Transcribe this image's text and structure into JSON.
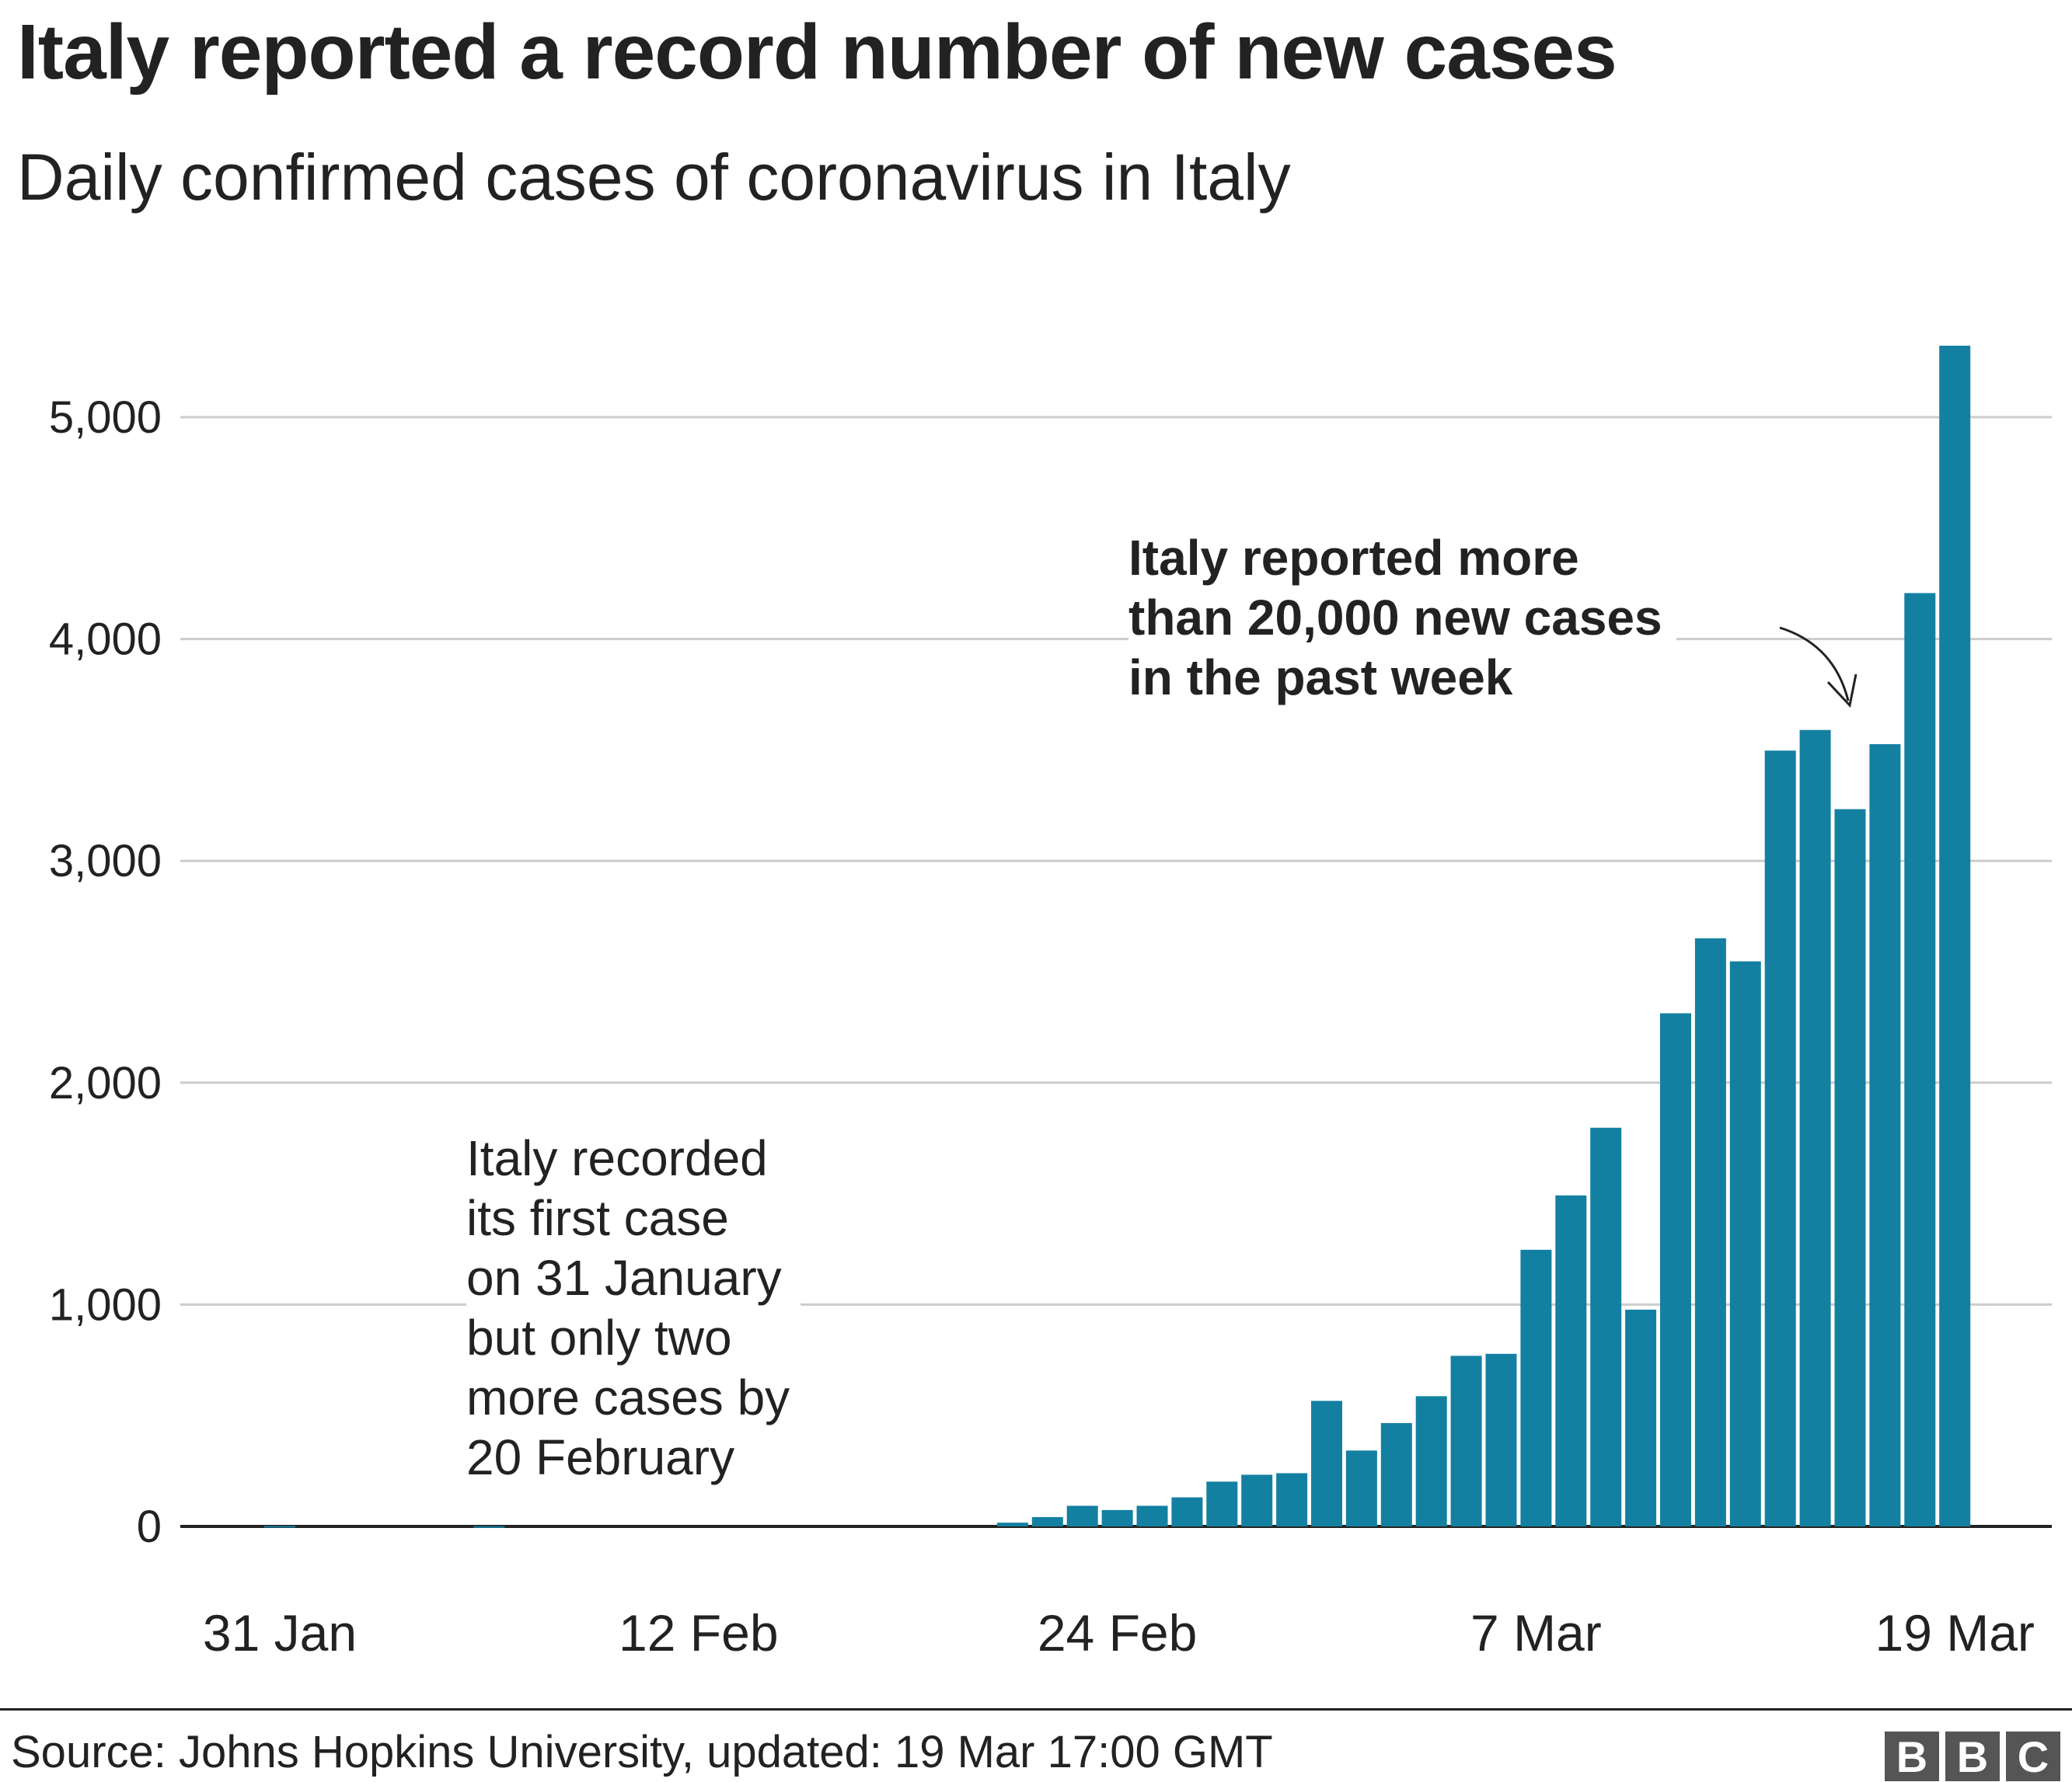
{
  "title": "Italy reported a record number of new cases",
  "subtitle": "Daily confirmed cases of coronavirus in Italy",
  "source": "Source: Johns Hopkins University, updated:  19 Mar 17:00 GMT",
  "logo": [
    "B",
    "B",
    "C"
  ],
  "colors": {
    "bar": "#1380a1",
    "grid": "#cccccc",
    "axis": "#222222"
  },
  "annotations": {
    "first_case": "Italy recorded\nits first case\non 31 January\nbut only two\nmore cases by\n20 February",
    "past_week": "Italy reported more\nthan 20,000 new cases\nin the past week"
  },
  "chart_data": {
    "type": "bar",
    "title": "Italy reported a record number of new cases",
    "subtitle": "Daily confirmed cases of coronavirus in Italy",
    "ylim": [
      0,
      5400
    ],
    "yticks": [
      0,
      1000,
      2000,
      3000,
      4000,
      5000
    ],
    "ytick_labels": [
      "0",
      "1,000",
      "2,000",
      "3,000",
      "4,000",
      "5,000"
    ],
    "xtick_labels": [
      "31 Jan",
      "12 Feb",
      "24 Feb",
      "7 Mar",
      "19 Mar"
    ],
    "xtick_dates": [
      "31 Jan",
      "12 Feb",
      "24 Feb",
      "7 Mar",
      "19 Mar"
    ],
    "grid": true,
    "categories": [
      "31 Jan",
      "1 Feb",
      "2 Feb",
      "3 Feb",
      "4 Feb",
      "5 Feb",
      "6 Feb",
      "7 Feb",
      "8 Feb",
      "9 Feb",
      "10 Feb",
      "11 Feb",
      "12 Feb",
      "13 Feb",
      "14 Feb",
      "15 Feb",
      "16 Feb",
      "17 Feb",
      "18 Feb",
      "19 Feb",
      "20 Feb",
      "21 Feb",
      "22 Feb",
      "23 Feb",
      "24 Feb",
      "25 Feb",
      "26 Feb",
      "27 Feb",
      "28 Feb",
      "29 Feb",
      "1 Mar",
      "2 Mar",
      "3 Mar",
      "4 Mar",
      "5 Mar",
      "6 Mar",
      "7 Mar",
      "8 Mar",
      "9 Mar",
      "10 Mar",
      "11 Mar",
      "12 Mar",
      "13 Mar",
      "14 Mar",
      "15 Mar",
      "16 Mar",
      "17 Mar",
      "18 Mar",
      "19 Mar"
    ],
    "values": [
      2,
      0,
      0,
      0,
      0,
      0,
      1,
      0,
      0,
      0,
      0,
      0,
      0,
      0,
      0,
      0,
      0,
      0,
      0,
      0,
      0,
      17,
      42,
      93,
      74,
      93,
      131,
      202,
      233,
      240,
      566,
      342,
      466,
      587,
      769,
      778,
      1247,
      1492,
      1797,
      977,
      2313,
      2651,
      2547,
      3497,
      3590,
      3233,
      3526,
      4207,
      5322
    ]
  }
}
